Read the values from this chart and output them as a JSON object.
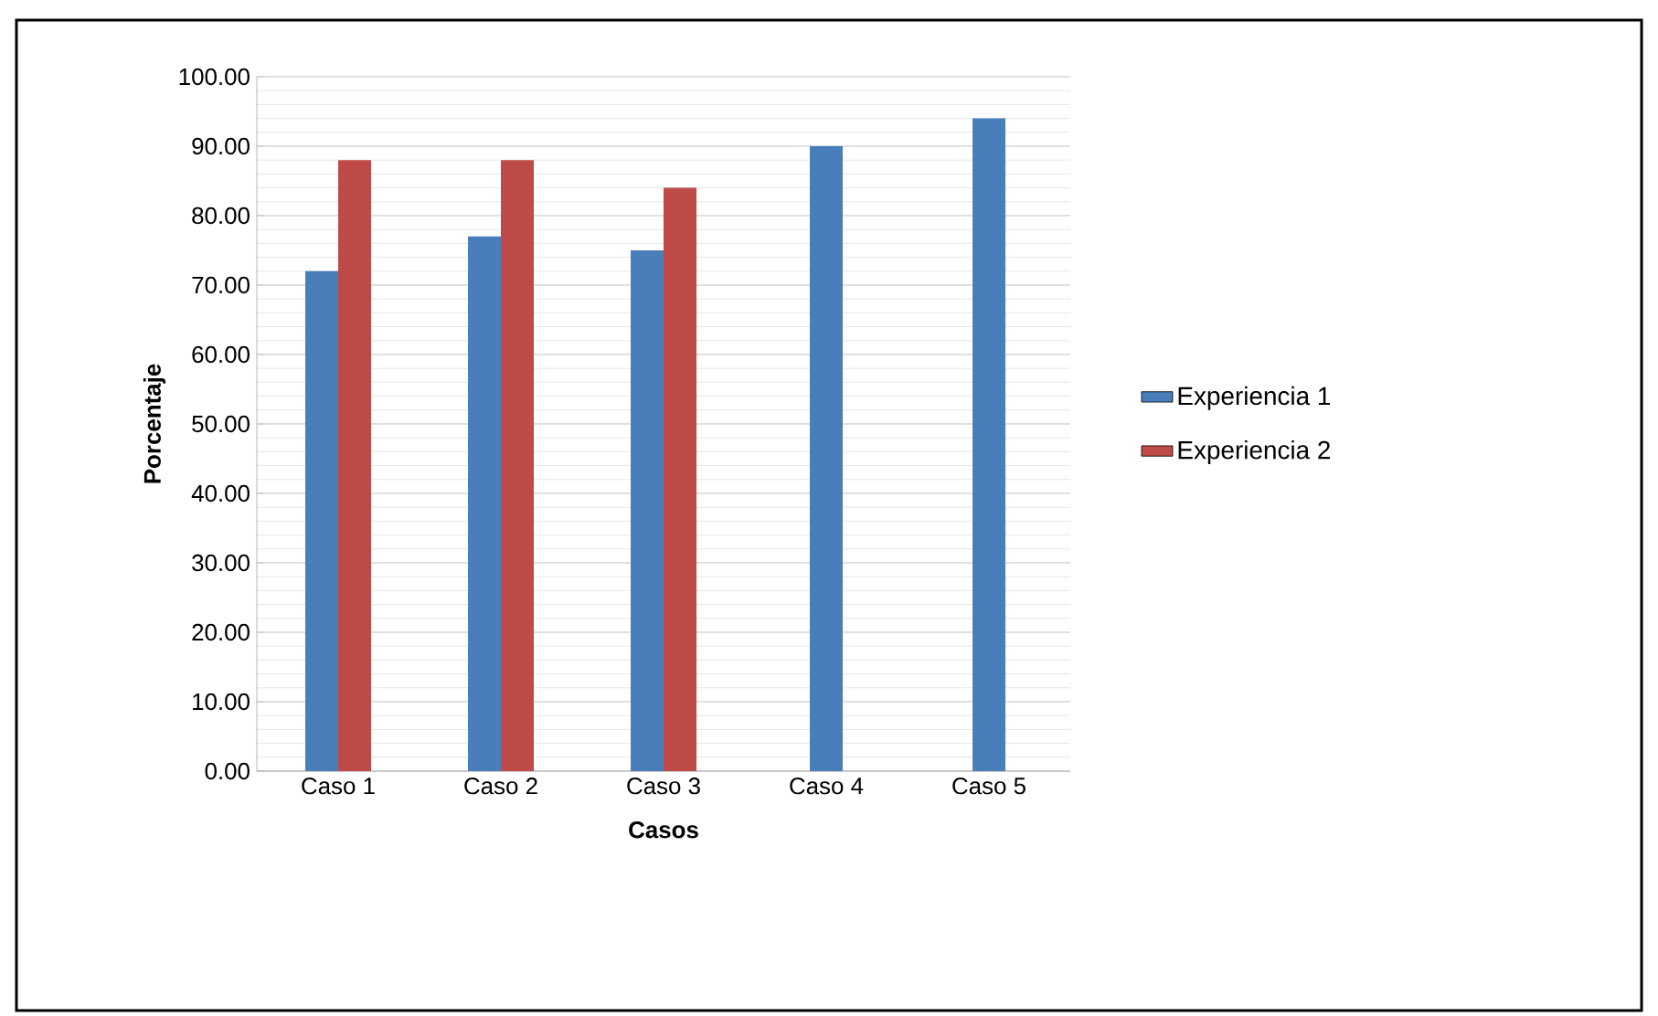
{
  "chart_data": {
    "type": "bar",
    "xlabel": "Casos",
    "ylabel": "Porcentaje",
    "categories": [
      "Caso 1",
      "Caso 2",
      "Caso 3",
      "Caso 4",
      "Caso 5"
    ],
    "series": [
      {
        "name": "Experiencia 1",
        "color": "#4a7ebb",
        "values": [
          72,
          77,
          75,
          90,
          94
        ]
      },
      {
        "name": "Experiencia 2",
        "color": "#be4b48",
        "values": [
          88,
          88,
          84,
          null,
          null
        ]
      }
    ],
    "ylim": [
      0,
      100
    ],
    "yticks": [
      {
        "value": 0,
        "label": "0.00"
      },
      {
        "value": 10,
        "label": "10.00"
      },
      {
        "value": 20,
        "label": "20.00"
      },
      {
        "value": 30,
        "label": "30.00"
      },
      {
        "value": 40,
        "label": "40.00"
      },
      {
        "value": 50,
        "label": "50.00"
      },
      {
        "value": 60,
        "label": "60.00"
      },
      {
        "value": 70,
        "label": "70.00"
      },
      {
        "value": 80,
        "label": "80.00"
      },
      {
        "value": 90,
        "label": "90.00"
      },
      {
        "value": 100,
        "label": "100.00"
      }
    ],
    "grid": "y",
    "legend": "right"
  }
}
